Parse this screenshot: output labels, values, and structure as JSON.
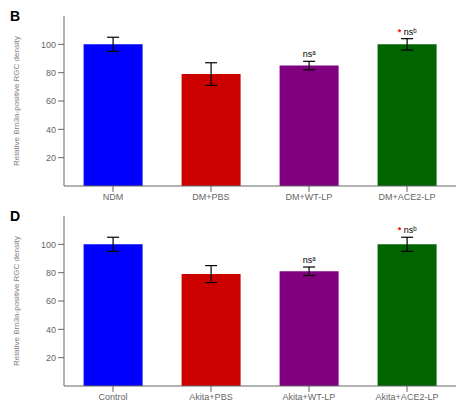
{
  "chart_data": [
    {
      "type": "bar",
      "title": "B",
      "categories": [
        "NDM",
        "DM+PBS",
        "DM+WT-LP",
        "DM+ACE2-LP"
      ],
      "values": [
        100,
        79,
        85,
        100
      ],
      "errors": [
        5,
        8,
        3,
        4
      ],
      "colors": [
        "#0000FF",
        "#CC0000",
        "#800080",
        "#006400"
      ],
      "ylabel": "Relative Brn3a-positive RGC density",
      "ylim": [
        0,
        120
      ],
      "yticks": [
        20,
        40,
        60,
        80,
        100
      ],
      "grid": false,
      "annotations": [
        {
          "category": "DM+WT-LP",
          "text": "nsᵃ",
          "color": "black"
        },
        {
          "category": "DM+ACE2-LP",
          "text": "*",
          "color": "red"
        },
        {
          "category": "DM+ACE2-LP",
          "text": "nsᵇ",
          "color": "black"
        }
      ]
    },
    {
      "type": "bar",
      "title": "D",
      "categories": [
        "Control",
        "Akita+PBS",
        "Akita+WT-LP",
        "Akita+ACE2-LP"
      ],
      "values": [
        100,
        79,
        81,
        100
      ],
      "errors": [
        5,
        6,
        3,
        5
      ],
      "colors": [
        "#0000FF",
        "#CC0000",
        "#800080",
        "#006400"
      ],
      "ylabel": "Relative Brn3a-positive RGC density",
      "ylim": [
        0,
        120
      ],
      "yticks": [
        20,
        40,
        60,
        80,
        100
      ],
      "grid": false,
      "annotations": [
        {
          "category": "Akita+WT-LP",
          "text": "nsᵃ",
          "color": "black"
        },
        {
          "category": "Akita+ACE2-LP",
          "text": "*",
          "color": "red"
        },
        {
          "category": "Akita+ACE2-LP",
          "text": "nsᵇ",
          "color": "black"
        }
      ]
    }
  ]
}
